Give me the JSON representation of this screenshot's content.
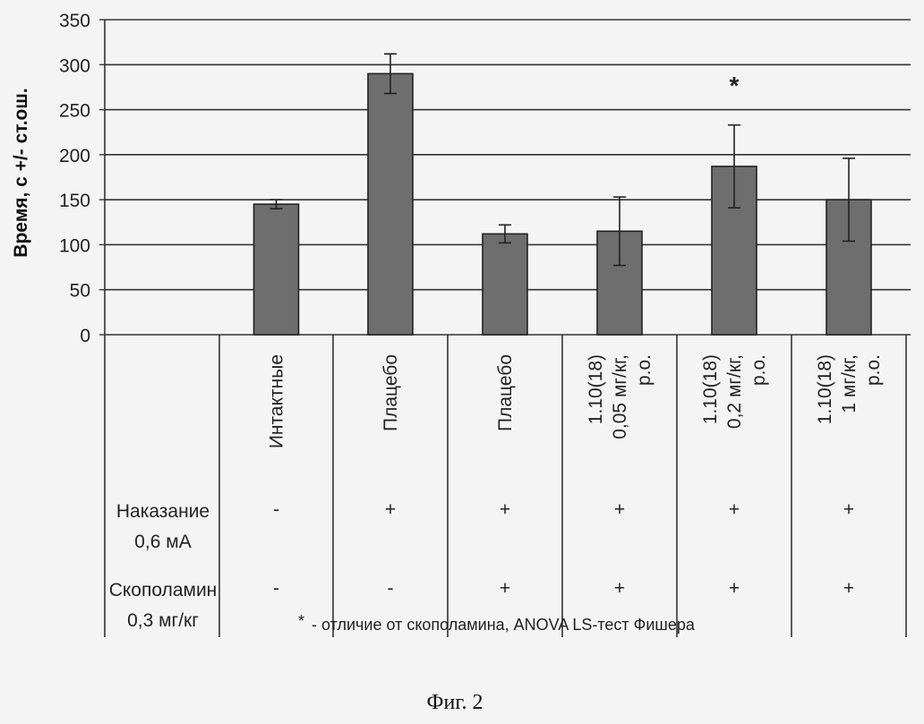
{
  "chart_data": {
    "type": "bar",
    "ylabel": "Время, с +/- ст.ош.",
    "ylim": [
      0,
      350
    ],
    "yticks": [
      0,
      50,
      100,
      150,
      200,
      250,
      300,
      350
    ],
    "grid": true,
    "categories": [
      [
        "Интактные"
      ],
      [
        "Плацебо"
      ],
      [
        "Плацебо"
      ],
      [
        "1.10(18)",
        "0,05 мг/кг,",
        "p.o."
      ],
      [
        "1.10(18)",
        "0,2 мг/кг,",
        "p.o."
      ],
      [
        "1.10(18)",
        "1 мг/кг,",
        "p.o."
      ]
    ],
    "values": [
      145,
      290,
      112,
      115,
      187,
      150
    ],
    "errors": [
      5,
      22,
      10,
      38,
      46,
      46
    ],
    "significance": [
      "",
      "",
      "",
      "",
      "*",
      ""
    ],
    "bar_color": "#6e6e6e",
    "rows": [
      {
        "label": [
          "Наказание",
          "0,6 мА"
        ],
        "values": [
          "-",
          "+",
          "+",
          "+",
          "+",
          "+"
        ]
      },
      {
        "label": [
          "Скополамин",
          "0,3 мг/кг"
        ],
        "values": [
          "-",
          "-",
          "+",
          "+",
          "+",
          "+"
        ]
      }
    ],
    "note_star": "*",
    "note": "- отличие от скополамина, ANOVA LS-тест Фишера"
  },
  "caption": "Фиг. 2"
}
